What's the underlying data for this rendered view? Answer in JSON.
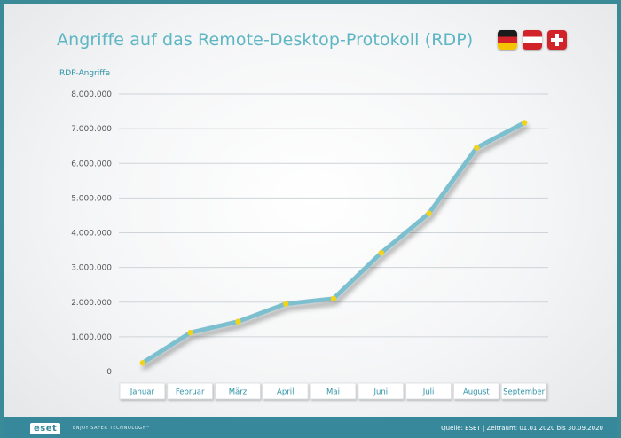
{
  "header": {
    "title": "Angriffe auf das Remote-Desktop-Protokoll (RDP)",
    "flags": [
      "germany-flag",
      "austria-flag",
      "switzerland-flag"
    ]
  },
  "chart_data": {
    "type": "line",
    "title": "Angriffe auf das Remote-Desktop-Protokoll (RDP)",
    "ylabel": "RDP-Angriffe",
    "xlabel": "",
    "categories": [
      "Januar",
      "Februar",
      "März",
      "April",
      "Mai",
      "Juni",
      "Juli",
      "August",
      "September"
    ],
    "series": [
      {
        "values": [
          250000,
          1120000,
          1440000,
          1950000,
          2100000,
          3420000,
          4560000,
          6450000,
          7170000
        ]
      }
    ],
    "ylim": [
      0,
      8000000
    ],
    "yticks": [
      0,
      1000000,
      2000000,
      3000000,
      4000000,
      5000000,
      6000000,
      7000000,
      8000000
    ],
    "ytick_labels": [
      "0",
      "1.000.000",
      "2.000.000",
      "3.000.000",
      "4.000.000",
      "5.000.000",
      "6.000.000",
      "7.000.000",
      "8.000.000"
    ],
    "grid": true,
    "colors": {
      "line": "#7bbfcf",
      "marker": "#f2d31b",
      "grid": "#cfd4d8",
      "axis_text": "#555555"
    }
  },
  "footer": {
    "logo": "eset",
    "tagline": "ENJOY SAFER TECHNOLOGY™",
    "source": "Quelle: ESET | Zeitraum: 01.01.2020 bis 30.09.2020"
  }
}
